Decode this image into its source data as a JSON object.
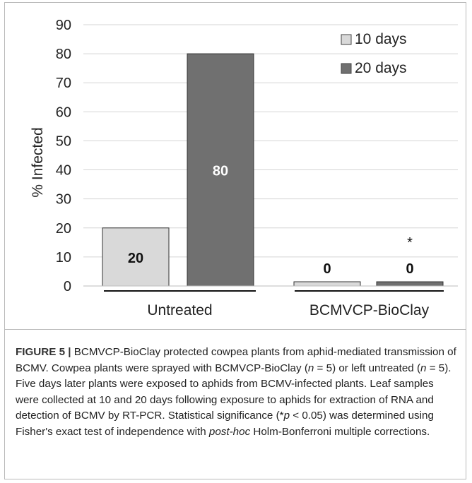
{
  "chart_data": {
    "type": "bar",
    "categories": [
      "Untreated",
      "BCMVCP-BioClay"
    ],
    "series": [
      {
        "name": "10 days",
        "values": [
          20,
          0
        ],
        "labels": [
          "20",
          "0"
        ],
        "color": "#d9d9d9"
      },
      {
        "name": "20 days",
        "values": [
          80,
          0
        ],
        "labels": [
          "80",
          "0"
        ],
        "color": "#707070"
      }
    ],
    "ylabel": "% Infected",
    "ylim": [
      0,
      90
    ],
    "yticks": [
      0,
      10,
      20,
      30,
      40,
      50,
      60,
      70,
      80,
      90
    ],
    "grid": true,
    "legend_position": "top-right",
    "annotation": "*"
  },
  "caption": {
    "figure_label": "FIGURE 5 |",
    "text_1": " BCMVCP-BioClay protected cowpea plants from aphid-mediated transmission of BCMV. Cowpea plants were sprayed with BCMVCP-BioClay (",
    "n_1": "n",
    "text_2": " = 5) or left untreated (",
    "n_2": "n",
    "text_3": " = 5). Five days later plants were exposed to aphids from BCMV-infected plants. Leaf samples were collected at 10 and 20 days following exposure to aphids for extraction of RNA and detection of BCMV by RT-PCR. Statistical significance (*",
    "p": "p",
    "text_4": " < 0.05) was determined using Fisher's exact test of independence with ",
    "posthoc": "post-hoc",
    "text_5": " Holm-Bonferroni multiple corrections."
  }
}
